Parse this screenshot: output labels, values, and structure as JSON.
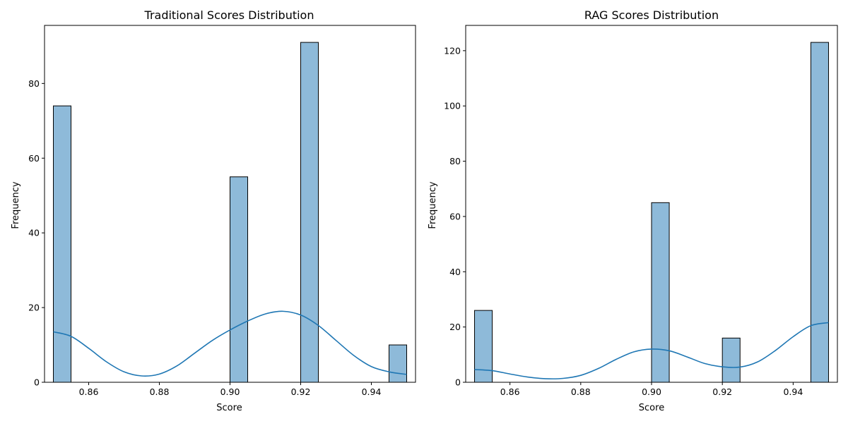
{
  "chart_data": [
    {
      "type": "bar",
      "title": "Traditional Scores Distribution",
      "xlabel": "Score",
      "ylabel": "Frequency",
      "xlim": [
        0.8475,
        0.9525
      ],
      "ylim": [
        0,
        95.55
      ],
      "xticks": [
        0.86,
        0.88,
        0.9,
        0.92,
        0.94
      ],
      "xtick_labels": [
        "0.86",
        "0.88",
        "0.90",
        "0.92",
        "0.94"
      ],
      "yticks": [
        0,
        20,
        40,
        60,
        80
      ],
      "ytick_labels": [
        "0",
        "20",
        "40",
        "60",
        "80"
      ],
      "bin_width": 0.005,
      "bins": [
        {
          "x0": 0.85,
          "x1": 0.855,
          "count": 74
        },
        {
          "x0": 0.9,
          "x1": 0.905,
          "count": 55
        },
        {
          "x0": 0.92,
          "x1": 0.925,
          "count": 91
        },
        {
          "x0": 0.945,
          "x1": 0.95,
          "count": 10
        }
      ],
      "kde": {
        "x": [
          0.85,
          0.855,
          0.86,
          0.865,
          0.87,
          0.875,
          0.88,
          0.885,
          0.89,
          0.895,
          0.9,
          0.905,
          0.91,
          0.915,
          0.92,
          0.925,
          0.93,
          0.935,
          0.94,
          0.945,
          0.95
        ],
        "y": [
          13.5,
          12.3,
          9.1,
          5.5,
          2.8,
          1.7,
          2.2,
          4.4,
          7.8,
          11.2,
          14.0,
          16.4,
          18.3,
          19.0,
          18.0,
          15.2,
          11.2,
          7.2,
          4.2,
          2.8,
          2.1
        ]
      },
      "colors": {
        "bar_fill": "#8ebad9",
        "bar_edge": "#000000",
        "kde_line": "#1f77b4"
      },
      "grid": false,
      "legend": "none"
    },
    {
      "type": "bar",
      "title": "RAG Scores Distribution",
      "xlabel": "Score",
      "ylabel": "Frequency",
      "xlim": [
        0.8475,
        0.9525
      ],
      "ylim": [
        0,
        129.15
      ],
      "xticks": [
        0.86,
        0.88,
        0.9,
        0.92,
        0.94
      ],
      "xtick_labels": [
        "0.86",
        "0.88",
        "0.90",
        "0.92",
        "0.94"
      ],
      "yticks": [
        0,
        20,
        40,
        60,
        80,
        100,
        120
      ],
      "ytick_labels": [
        "0",
        "20",
        "40",
        "60",
        "80",
        "100",
        "120"
      ],
      "bin_width": 0.005,
      "bins": [
        {
          "x0": 0.85,
          "x1": 0.855,
          "count": 26
        },
        {
          "x0": 0.9,
          "x1": 0.905,
          "count": 65
        },
        {
          "x0": 0.92,
          "x1": 0.925,
          "count": 16
        },
        {
          "x0": 0.945,
          "x1": 0.95,
          "count": 123
        }
      ],
      "kde": {
        "x": [
          0.85,
          0.855,
          0.86,
          0.865,
          0.87,
          0.875,
          0.88,
          0.885,
          0.89,
          0.895,
          0.9,
          0.905,
          0.91,
          0.915,
          0.92,
          0.925,
          0.93,
          0.935,
          0.94,
          0.945,
          0.95
        ],
        "y": [
          4.6,
          4.2,
          3.0,
          1.9,
          1.3,
          1.4,
          2.5,
          5.0,
          8.3,
          11.0,
          12.0,
          11.4,
          9.2,
          6.8,
          5.6,
          5.5,
          7.4,
          11.5,
          16.5,
          20.5,
          21.6
        ]
      },
      "colors": {
        "bar_fill": "#8ebad9",
        "bar_edge": "#000000",
        "kde_line": "#1f77b4"
      },
      "grid": false,
      "legend": "none"
    }
  ]
}
